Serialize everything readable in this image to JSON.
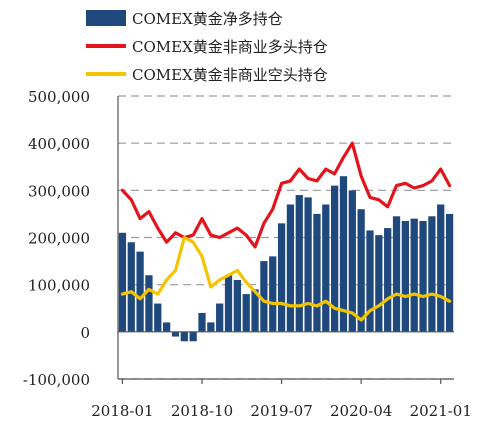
{
  "chart_data": {
    "type": "bar",
    "x": [
      "2018-01",
      "2018-02",
      "2018-03",
      "2018-04",
      "2018-05",
      "2018-06",
      "2018-07",
      "2018-08",
      "2018-09",
      "2018-10",
      "2018-11",
      "2018-12",
      "2019-01",
      "2019-02",
      "2019-03",
      "2019-04",
      "2019-05",
      "2019-06",
      "2019-07",
      "2019-08",
      "2019-09",
      "2019-10",
      "2019-11",
      "2019-12",
      "2020-01",
      "2020-02",
      "2020-03",
      "2020-04",
      "2020-05",
      "2020-06",
      "2020-07",
      "2020-08",
      "2020-09",
      "2020-10",
      "2020-11",
      "2020-12",
      "2021-01",
      "2021-02"
    ],
    "xticks": [
      "2018-01",
      "2018-10",
      "2019-07",
      "2020-04",
      "2021-01"
    ],
    "ylim": [
      -100000,
      500000
    ],
    "yticks": [
      "-100,000",
      "0",
      "100,000",
      "200,000",
      "300,000",
      "400,000",
      "500,000"
    ],
    "ytick_values": [
      -100000,
      0,
      100000,
      200000,
      300000,
      400000,
      500000
    ],
    "grid": true,
    "legend_position": "top-left",
    "series": [
      {
        "name": "COMEX黄金净多持仓",
        "kind": "bar",
        "color": "#1f497d",
        "values": [
          210000,
          190000,
          170000,
          120000,
          60000,
          20000,
          -10000,
          -20000,
          -20000,
          40000,
          20000,
          60000,
          120000,
          110000,
          80000,
          90000,
          150000,
          160000,
          230000,
          270000,
          290000,
          285000,
          250000,
          270000,
          310000,
          330000,
          300000,
          260000,
          215000,
          205000,
          220000,
          245000,
          235000,
          240000,
          235000,
          245000,
          270000,
          250000
        ]
      },
      {
        "name": "COMEX黄金非商业多头持仓",
        "kind": "line",
        "color": "#e3141c",
        "values": [
          300000,
          280000,
          240000,
          255000,
          220000,
          190000,
          210000,
          200000,
          205000,
          240000,
          205000,
          200000,
          210000,
          220000,
          205000,
          180000,
          230000,
          260000,
          315000,
          320000,
          345000,
          325000,
          320000,
          345000,
          335000,
          370000,
          400000,
          330000,
          285000,
          280000,
          265000,
          310000,
          315000,
          305000,
          310000,
          320000,
          345000,
          310000
        ]
      },
      {
        "name": "COMEX黄金非商业空头持仓",
        "kind": "line",
        "color": "#f5c400",
        "values": [
          80000,
          85000,
          70000,
          90000,
          80000,
          110000,
          130000,
          200000,
          190000,
          160000,
          95000,
          110000,
          120000,
          130000,
          105000,
          85000,
          65000,
          60000,
          60000,
          55000,
          55000,
          60000,
          55000,
          65000,
          50000,
          45000,
          40000,
          25000,
          45000,
          55000,
          70000,
          80000,
          75000,
          80000,
          75000,
          80000,
          75000,
          65000
        ]
      }
    ]
  }
}
